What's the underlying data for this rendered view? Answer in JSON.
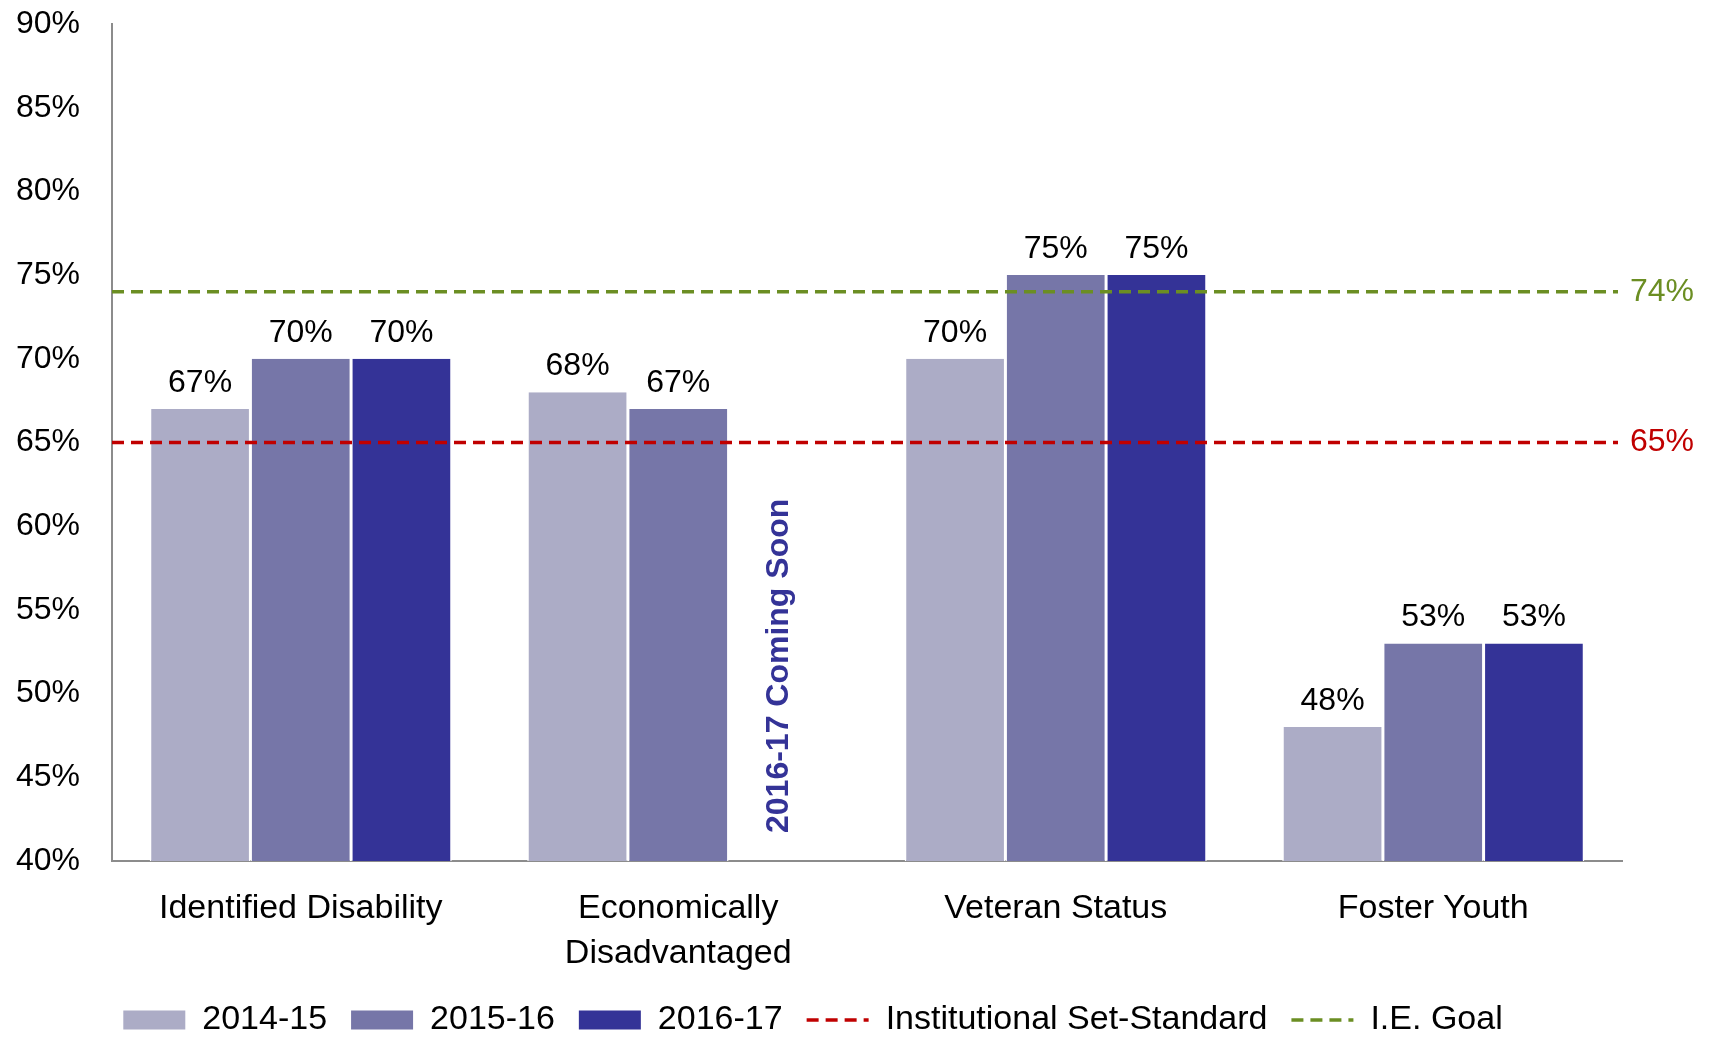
{
  "chart_data": {
    "type": "bar",
    "categories": [
      "Identified Disability",
      "Economically Disadvantaged",
      "Veteran Status",
      "Foster Youth"
    ],
    "series": [
      {
        "name": "2014-15",
        "color": "#acacc6",
        "values": [
          67,
          68,
          70,
          48
        ],
        "value_labels": [
          "67%",
          "68%",
          "70%",
          "48%"
        ]
      },
      {
        "name": "2015-16",
        "color": "#7676a8",
        "values": [
          70,
          67,
          75,
          53
        ],
        "value_labels": [
          "70%",
          "67%",
          "75%",
          "53%"
        ]
      },
      {
        "name": "2016-17",
        "color": "#343397",
        "values": [
          70,
          null,
          75,
          53
        ],
        "value_labels": [
          "70%",
          null,
          "75%",
          "53%"
        ]
      }
    ],
    "ylim": [
      40,
      90
    ],
    "yticks": [
      {
        "value": 40,
        "label": "40%"
      },
      {
        "value": 45,
        "label": "45%"
      },
      {
        "value": 50,
        "label": "50%"
      },
      {
        "value": 55,
        "label": "55%"
      },
      {
        "value": 60,
        "label": "60%"
      },
      {
        "value": 65,
        "label": "65%"
      },
      {
        "value": 70,
        "label": "70%"
      },
      {
        "value": 75,
        "label": "75%"
      },
      {
        "value": 80,
        "label": "80%"
      },
      {
        "value": 85,
        "label": "85%"
      },
      {
        "value": 90,
        "label": "90%"
      }
    ],
    "grid": false,
    "legend": "bottom",
    "ref_lines": [
      {
        "axis": "y",
        "value": 65,
        "label": "Institutional Set-Standard",
        "color": "#c00000",
        "line_style": "dashed"
      },
      {
        "axis": "y",
        "value": 74,
        "label": "I.E. Goal",
        "color": "#6b8e23",
        "line_style": "dashed"
      }
    ],
    "annotations": [
      "2016-17 Coming Soon",
      "65%",
      "74%"
    ]
  }
}
